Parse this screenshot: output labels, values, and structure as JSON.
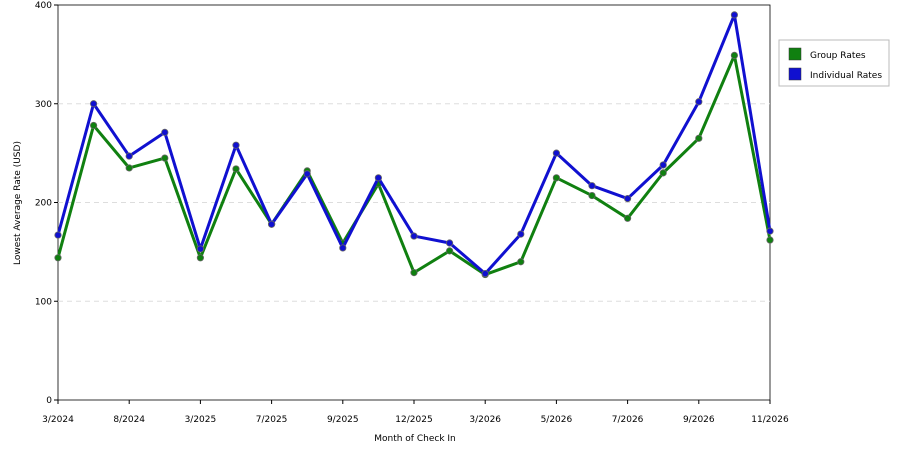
{
  "chart_data": {
    "type": "line",
    "xlabel": "Month of Check In",
    "ylabel": "Lowest Average Rate (USD)",
    "categories": [
      "3/2024",
      null,
      "8/2024",
      null,
      "3/2025",
      null,
      "7/2025",
      null,
      "9/2025",
      null,
      "12/2025",
      null,
      "3/2026",
      null,
      "5/2026",
      null,
      "7/2026",
      null,
      "9/2026",
      null,
      "11/2026"
    ],
    "series": [
      {
        "name": "Group Rates",
        "color": "#108010",
        "values": [
          144,
          278,
          235,
          245,
          144,
          234,
          178,
          232,
          159,
          219,
          129,
          151,
          127,
          140,
          225,
          207,
          184,
          230,
          265,
          349,
          162
        ]
      },
      {
        "name": "Individual Rates",
        "color": "#1010d0",
        "values": [
          167,
          300,
          247,
          271,
          153,
          258,
          178,
          229,
          154,
          225,
          166,
          159,
          128,
          168,
          250,
          217,
          204,
          238,
          302,
          390,
          171
        ]
      }
    ],
    "ylim": [
      0,
      400
    ],
    "yticks": [
      0,
      100,
      200,
      300,
      400
    ],
    "grid": true
  }
}
